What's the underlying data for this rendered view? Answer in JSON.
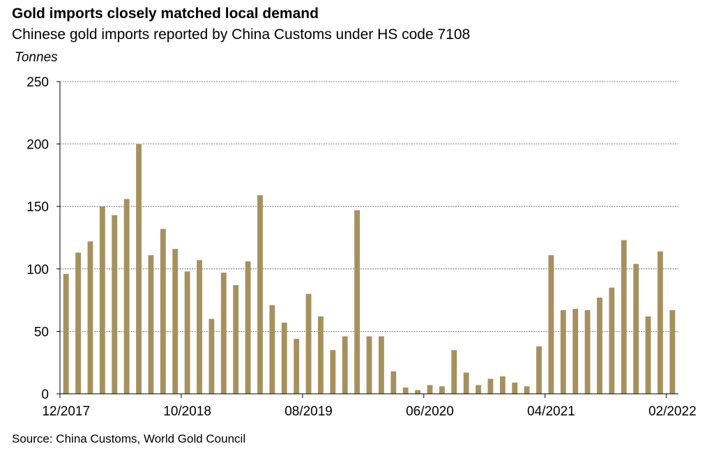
{
  "chart_data": {
    "type": "bar",
    "title": "Gold imports closely matched local demand",
    "subtitle": "Chinese gold imports reported by China Customs under HS code 7108",
    "ylabel": "Tonnes",
    "xlabel": "",
    "ylim": [
      0,
      250
    ],
    "yticks": [
      0,
      50,
      100,
      150,
      200,
      250
    ],
    "grid": "horizontal dashed",
    "bar_color": "#a6915e",
    "categories": [
      "12/2017",
      "01/2018",
      "02/2018",
      "03/2018",
      "04/2018",
      "05/2018",
      "06/2018",
      "07/2018",
      "08/2018",
      "09/2018",
      "10/2018",
      "11/2018",
      "12/2018",
      "01/2019",
      "02/2019",
      "03/2019",
      "04/2019",
      "05/2019",
      "06/2019",
      "07/2019",
      "08/2019",
      "09/2019",
      "10/2019",
      "11/2019",
      "12/2019",
      "01/2020",
      "02/2020",
      "03/2020",
      "04/2020",
      "05/2020",
      "06/2020",
      "07/2020",
      "08/2020",
      "09/2020",
      "10/2020",
      "11/2020",
      "12/2020",
      "01/2021",
      "02/2021",
      "03/2021",
      "04/2021",
      "05/2021",
      "06/2021",
      "07/2021",
      "08/2021",
      "09/2021",
      "10/2021",
      "11/2021",
      "12/2021",
      "01/2022",
      "02/2022"
    ],
    "values": [
      96,
      113,
      122,
      150,
      143,
      156,
      200,
      111,
      132,
      116,
      98,
      107,
      60,
      97,
      87,
      106,
      159,
      71,
      57,
      44,
      80,
      62,
      35,
      46,
      147,
      46,
      46,
      18,
      5,
      3,
      7,
      6,
      35,
      17,
      7,
      12,
      14,
      9,
      6,
      38,
      111,
      67,
      68,
      67,
      77,
      85,
      123,
      104,
      62,
      114,
      67
    ],
    "xtick_labels": [
      "12/2017",
      "10/2018",
      "08/2019",
      "06/2020",
      "04/2021",
      "02/2022"
    ],
    "xtick_indices": [
      0,
      10,
      20,
      30,
      40,
      50
    ]
  },
  "source": "Source: China Customs, World Gold Council"
}
